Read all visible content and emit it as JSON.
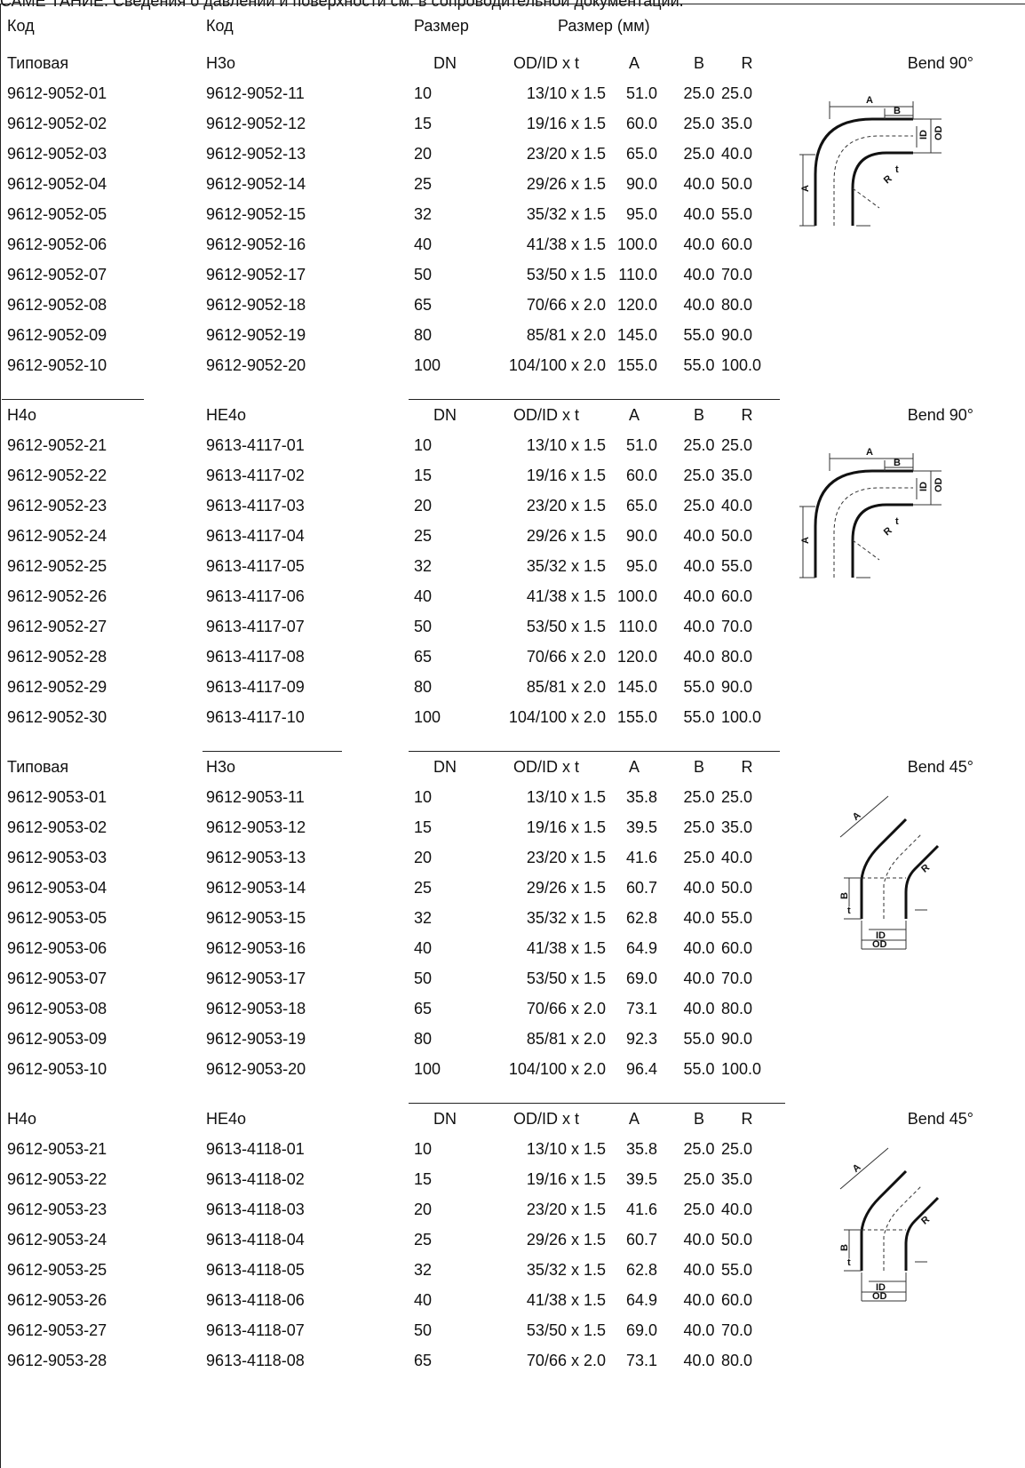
{
  "caption": "САМЕ ТАНИЕ. Сведения о давлении и поверхности см. в сопроводительной документации.",
  "top_header": {
    "code1": "Код",
    "code2": "Код",
    "size": "Размер",
    "size_mm": "Размер (мм)"
  },
  "sections": [
    {
      "cols": [
        "Типовая",
        "H3o",
        "DN",
        "OD/ID x t",
        "A",
        "B",
        "R"
      ],
      "bend": "Bend 90°",
      "shape": "bend90",
      "rows": [
        [
          "9612-9052-01",
          "9612-9052-11",
          "10",
          "13/10 x 1.5",
          "51.0",
          "25.0",
          "25.0"
        ],
        [
          "9612-9052-02",
          "9612-9052-12",
          "15",
          "19/16 x 1.5",
          "60.0",
          "25.0",
          "35.0"
        ],
        [
          "9612-9052-03",
          "9612-9052-13",
          "20",
          "23/20 x 1.5",
          "65.0",
          "25.0",
          "40.0"
        ],
        [
          "9612-9052-04",
          "9612-9052-14",
          "25",
          "29/26 x 1.5",
          "90.0",
          "40.0",
          "50.0"
        ],
        [
          "9612-9052-05",
          "9612-9052-15",
          "32",
          "35/32 x 1.5",
          "95.0",
          "40.0",
          "55.0"
        ],
        [
          "9612-9052-06",
          "9612-9052-16",
          "40",
          "41/38 x 1.5",
          "100.0",
          "40.0",
          "60.0"
        ],
        [
          "9612-9052-07",
          "9612-9052-17",
          "50",
          "53/50 x 1.5",
          "110.0",
          "40.0",
          "70.0"
        ],
        [
          "9612-9052-08",
          "9612-9052-18",
          "65",
          "70/66 x 2.0",
          "120.0",
          "40.0",
          "80.0"
        ],
        [
          "9612-9052-09",
          "9612-9052-19",
          "80",
          "85/81 x 2.0",
          "145.0",
          "55.0",
          "90.0"
        ],
        [
          "9612-9052-10",
          "9612-9052-20",
          "100",
          "104/100 x 2.0",
          "155.0",
          "55.0",
          "100.0"
        ]
      ]
    },
    {
      "cols": [
        "H4o",
        "HE4o",
        "DN",
        "OD/ID x t",
        "A",
        "B",
        "R"
      ],
      "bend": "Bend 90°",
      "shape": "bend90",
      "rows": [
        [
          "9612-9052-21",
          "9613-4117-01",
          "10",
          "13/10 x 1.5",
          "51.0",
          "25.0",
          "25.0"
        ],
        [
          "9612-9052-22",
          "9613-4117-02",
          "15",
          "19/16 x 1.5",
          "60.0",
          "25.0",
          "35.0"
        ],
        [
          "9612-9052-23",
          "9613-4117-03",
          "20",
          "23/20 x 1.5",
          "65.0",
          "25.0",
          "40.0"
        ],
        [
          "9612-9052-24",
          "9613-4117-04",
          "25",
          "29/26 x 1.5",
          "90.0",
          "40.0",
          "50.0"
        ],
        [
          "9612-9052-25",
          "9613-4117-05",
          "32",
          "35/32 x 1.5",
          "95.0",
          "40.0",
          "55.0"
        ],
        [
          "9612-9052-26",
          "9613-4117-06",
          "40",
          "41/38 x 1.5",
          "100.0",
          "40.0",
          "60.0"
        ],
        [
          "9612-9052-27",
          "9613-4117-07",
          "50",
          "53/50 x 1.5",
          "110.0",
          "40.0",
          "70.0"
        ],
        [
          "9612-9052-28",
          "9613-4117-08",
          "65",
          "70/66 x 2.0",
          "120.0",
          "40.0",
          "80.0"
        ],
        [
          "9612-9052-29",
          "9613-4117-09",
          "80",
          "85/81 x 2.0",
          "145.0",
          "55.0",
          "90.0"
        ],
        [
          "9612-9052-30",
          "9613-4117-10",
          "100",
          "104/100 x 2.0",
          "155.0",
          "55.0",
          "100.0"
        ]
      ]
    },
    {
      "cols": [
        "Типовая",
        "H3o",
        "DN",
        "OD/ID x t",
        "A",
        "B",
        "R"
      ],
      "bend": "Bend 45°",
      "shape": "bend45",
      "rows": [
        [
          "9612-9053-01",
          "9612-9053-11",
          "10",
          "13/10 x 1.5",
          "35.8",
          "25.0",
          "25.0"
        ],
        [
          "9612-9053-02",
          "9612-9053-12",
          "15",
          "19/16 x 1.5",
          "39.5",
          "25.0",
          "35.0"
        ],
        [
          "9612-9053-03",
          "9612-9053-13",
          "20",
          "23/20 x 1.5",
          "41.6",
          "25.0",
          "40.0"
        ],
        [
          "9612-9053-04",
          "9612-9053-14",
          "25",
          "29/26 x 1.5",
          "60.7",
          "40.0",
          "50.0"
        ],
        [
          "9612-9053-05",
          "9612-9053-15",
          "32",
          "35/32 x 1.5",
          "62.8",
          "40.0",
          "55.0"
        ],
        [
          "9612-9053-06",
          "9612-9053-16",
          "40",
          "41/38 x 1.5",
          "64.9",
          "40.0",
          "60.0"
        ],
        [
          "9612-9053-07",
          "9612-9053-17",
          "50",
          "53/50 x 1.5",
          "69.0",
          "40.0",
          "70.0"
        ],
        [
          "9612-9053-08",
          "9612-9053-18",
          "65",
          "70/66 x 2.0",
          "73.1",
          "40.0",
          "80.0"
        ],
        [
          "9612-9053-09",
          "9612-9053-19",
          "80",
          "85/81 x 2.0",
          "92.3",
          "55.0",
          "90.0"
        ],
        [
          "9612-9053-10",
          "9612-9053-20",
          "100",
          "104/100 x 2.0",
          "96.4",
          "55.0",
          "100.0"
        ]
      ]
    },
    {
      "cols": [
        "H4o",
        "HE4o",
        "DN",
        "OD/ID x t",
        "A",
        "B",
        "R"
      ],
      "bend": "Bend 45°",
      "shape": "bend45",
      "rows": [
        [
          "9612-9053-21",
          "9613-4118-01",
          "10",
          "13/10 x 1.5",
          "35.8",
          "25.0",
          "25.0"
        ],
        [
          "9612-9053-22",
          "9613-4118-02",
          "15",
          "19/16 x 1.5",
          "39.5",
          "25.0",
          "35.0"
        ],
        [
          "9612-9053-23",
          "9613-4118-03",
          "20",
          "23/20 x 1.5",
          "41.6",
          "25.0",
          "40.0"
        ],
        [
          "9612-9053-24",
          "9613-4118-04",
          "25",
          "29/26 x 1.5",
          "60.7",
          "40.0",
          "50.0"
        ],
        [
          "9612-9053-25",
          "9613-4118-05",
          "32",
          "35/32 x 1.5",
          "62.8",
          "40.0",
          "55.0"
        ],
        [
          "9612-9053-26",
          "9613-4118-06",
          "40",
          "41/38 x 1.5",
          "64.9",
          "40.0",
          "60.0"
        ],
        [
          "9612-9053-27",
          "9613-4118-07",
          "50",
          "53/50 x 1.5",
          "69.0",
          "40.0",
          "70.0"
        ],
        [
          "9612-9053-28",
          "9613-4118-08",
          "65",
          "70/66 x 2.0",
          "73.1",
          "40.0",
          "80.0"
        ]
      ]
    }
  ],
  "drawing_labels": {
    "a": "A",
    "b": "B",
    "r": "R",
    "od": "OD",
    "id": "ID",
    "t": "t"
  }
}
